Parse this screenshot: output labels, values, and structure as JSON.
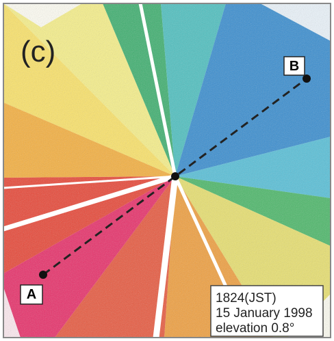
{
  "panel_label": "(c)",
  "points": [
    {
      "label": "A"
    },
    {
      "label": "B"
    }
  ],
  "annotation": {
    "lines": [
      "1824(JST)",
      "15 January 1998",
      "elevation 0.8°"
    ]
  }
}
